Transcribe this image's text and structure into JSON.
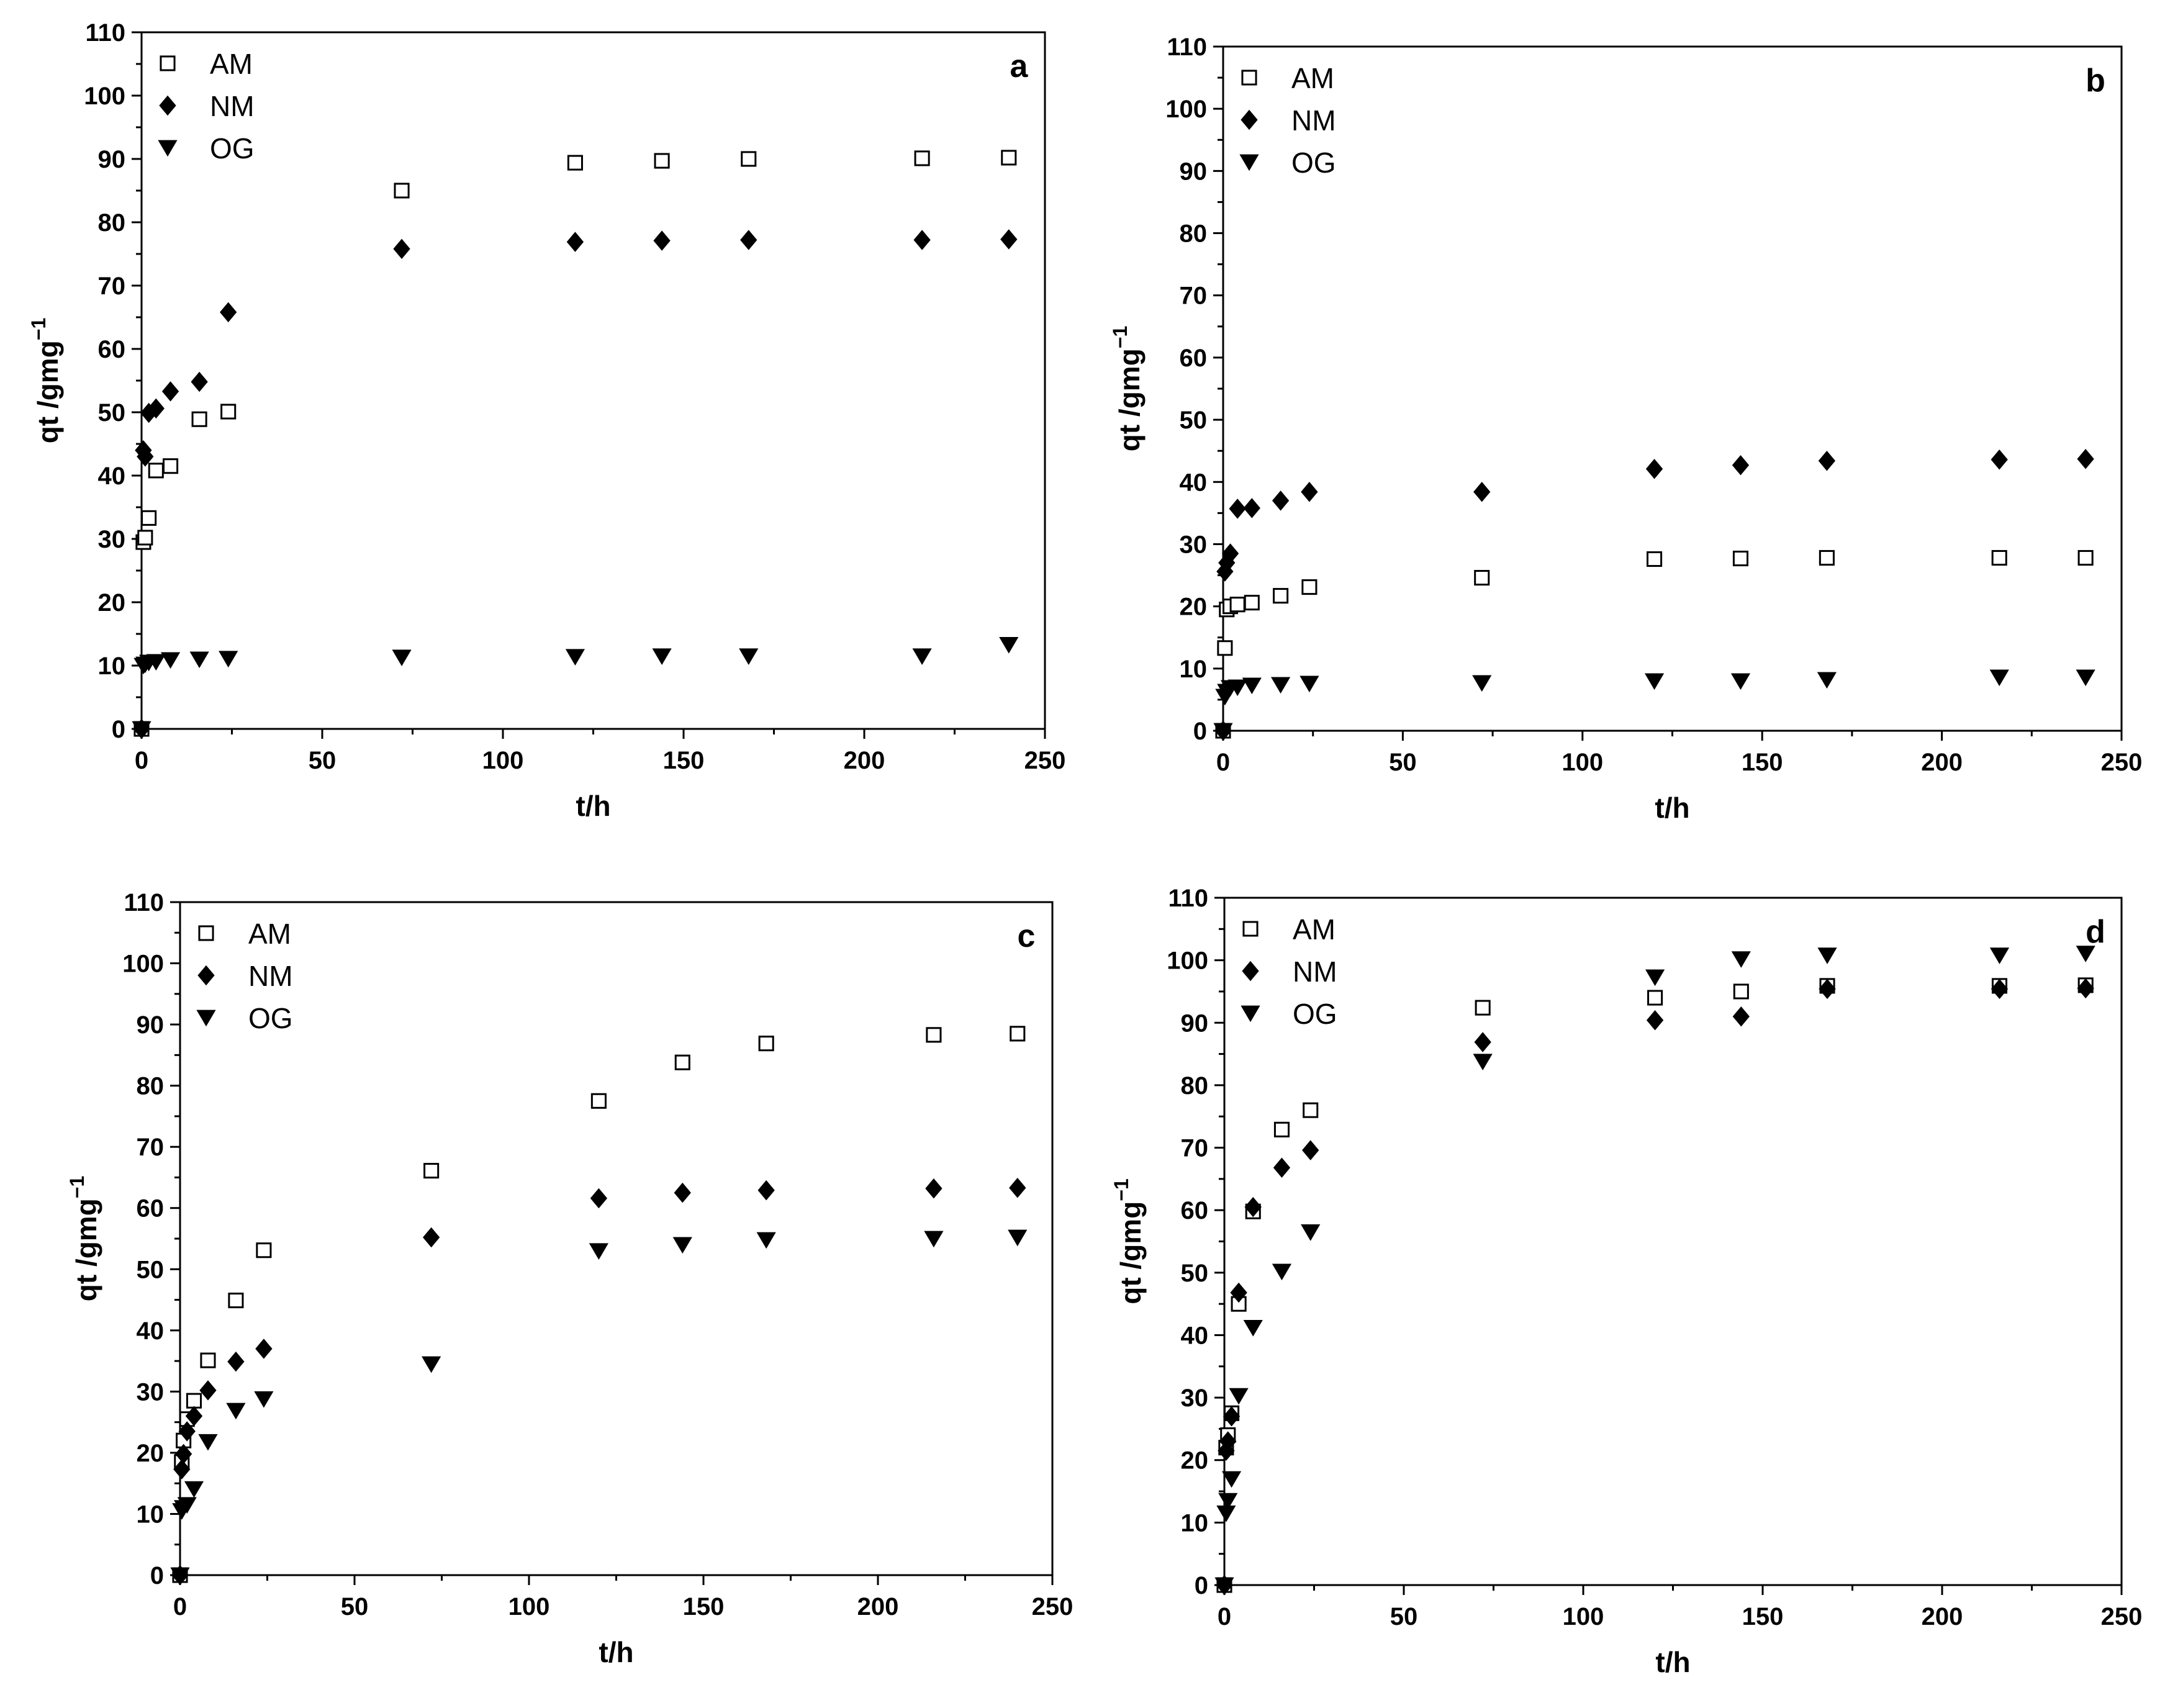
{
  "chart_data": [
    {
      "type": "scatter",
      "panel_label": "a",
      "xlabel": "t/h",
      "ylabel": "qt /gmg",
      "ylabel_superscript": "−1",
      "xlim": [
        0,
        250
      ],
      "ylim": [
        0,
        110
      ],
      "x_ticks": [
        "0",
        "50",
        "100",
        "150",
        "200",
        "250"
      ],
      "y_ticks": [
        "0",
        "10",
        "20",
        "30",
        "40",
        "50",
        "60",
        "70",
        "80",
        "90",
        "100",
        "110"
      ],
      "legend_position": "top-left",
      "series": [
        {
          "name": "AM",
          "marker": "open-square",
          "x": [
            0,
            0.5,
            1,
            2,
            4,
            8,
            16,
            24,
            72,
            120,
            144,
            168,
            216,
            240
          ],
          "y": [
            0,
            29.5,
            30.2,
            33.3,
            40.8,
            41.5,
            48.9,
            50.1,
            85.0,
            89.4,
            89.7,
            90.0,
            90.1,
            90.2
          ]
        },
        {
          "name": "NM",
          "marker": "filled-diamond",
          "x": [
            0,
            0.5,
            1,
            2,
            4,
            8,
            16,
            24,
            72,
            120,
            144,
            168,
            216,
            240
          ],
          "y": [
            0,
            44.0,
            43.0,
            49.9,
            50.6,
            53.3,
            54.8,
            65.8,
            75.8,
            76.9,
            77.1,
            77.2,
            77.2,
            77.3
          ]
        },
        {
          "name": "OG",
          "marker": "filled-triangle-down",
          "x": [
            0,
            0.5,
            1,
            2,
            4,
            8,
            16,
            24,
            72,
            120,
            144,
            168,
            216,
            240
          ],
          "y": [
            0,
            10.0,
            10.2,
            10.5,
            10.6,
            10.9,
            11.0,
            11.1,
            11.3,
            11.4,
            11.5,
            11.5,
            11.5,
            13.3
          ]
        }
      ]
    },
    {
      "type": "scatter",
      "panel_label": "b",
      "xlabel": "t/h",
      "ylabel": "qt /gmg",
      "ylabel_superscript": "−1",
      "xlim": [
        0,
        250
      ],
      "ylim": [
        0,
        110
      ],
      "x_ticks": [
        "0",
        "50",
        "100",
        "150",
        "200",
        "250"
      ],
      "y_ticks": [
        "0",
        "10",
        "20",
        "30",
        "40",
        "50",
        "60",
        "70",
        "80",
        "90",
        "100",
        "110"
      ],
      "legend_position": "top-left",
      "series": [
        {
          "name": "AM",
          "marker": "open-square",
          "x": [
            0,
            0.5,
            1,
            2,
            4,
            8,
            16,
            24,
            72,
            120,
            144,
            168,
            216,
            240
          ],
          "y": [
            0,
            13.3,
            19.5,
            20.0,
            20.3,
            20.6,
            21.7,
            23.1,
            24.6,
            27.6,
            27.7,
            27.8,
            27.8,
            27.8
          ]
        },
        {
          "name": "NM",
          "marker": "filled-diamond",
          "x": [
            0,
            0.5,
            1,
            2,
            4,
            8,
            16,
            24,
            72,
            120,
            144,
            168,
            216,
            240
          ],
          "y": [
            0,
            25.6,
            27.0,
            28.5,
            35.7,
            35.8,
            37.0,
            38.4,
            38.4,
            42.1,
            42.7,
            43.4,
            43.6,
            43.7
          ]
        },
        {
          "name": "OG",
          "marker": "filled-triangle-down",
          "x": [
            0,
            0.5,
            1,
            2,
            4,
            8,
            16,
            24,
            72,
            120,
            144,
            168,
            216,
            240
          ],
          "y": [
            0,
            5.5,
            6.3,
            6.9,
            7.0,
            7.3,
            7.4,
            7.6,
            7.7,
            8.0,
            8.0,
            8.2,
            8.6,
            8.6
          ]
        }
      ]
    },
    {
      "type": "scatter",
      "panel_label": "c",
      "xlabel": "t/h",
      "ylabel": "qt /gmg",
      "ylabel_superscript": "−1",
      "xlim": [
        0,
        250
      ],
      "ylim": [
        0,
        110
      ],
      "x_ticks": [
        "0",
        "50",
        "100",
        "150",
        "200",
        "250"
      ],
      "y_ticks": [
        "0",
        "10",
        "20",
        "30",
        "40",
        "50",
        "60",
        "70",
        "80",
        "90",
        "100",
        "110"
      ],
      "legend_position": "top-left",
      "series": [
        {
          "name": "AM",
          "marker": "open-square",
          "x": [
            0,
            0.5,
            1,
            2,
            4,
            8,
            16,
            24,
            72,
            120,
            144,
            168,
            216,
            240
          ],
          "y": [
            0,
            18.5,
            22.0,
            25.5,
            28.5,
            35.1,
            44.9,
            53.1,
            66.1,
            77.5,
            83.8,
            86.9,
            88.3,
            88.5
          ]
        },
        {
          "name": "NM",
          "marker": "filled-diamond",
          "x": [
            0,
            0.5,
            1,
            2,
            4,
            8,
            16,
            24,
            72,
            120,
            144,
            168,
            216,
            240
          ],
          "y": [
            0,
            17.3,
            19.8,
            23.5,
            26.0,
            30.2,
            34.9,
            37.0,
            55.2,
            61.6,
            62.5,
            62.9,
            63.2,
            63.3
          ]
        },
        {
          "name": "OG",
          "marker": "filled-triangle-down",
          "x": [
            0,
            0.5,
            1,
            2,
            4,
            8,
            16,
            24,
            72,
            120,
            144,
            168,
            216,
            240
          ],
          "y": [
            0,
            10.5,
            11.0,
            11.5,
            14.1,
            21.8,
            26.9,
            28.8,
            34.5,
            53.0,
            54.0,
            54.8,
            55.0,
            55.2
          ]
        }
      ]
    },
    {
      "type": "scatter",
      "panel_label": "d",
      "xlabel": "t/h",
      "ylabel": "qt /gmg",
      "ylabel_superscript": "−1",
      "xlim": [
        0,
        250
      ],
      "ylim": [
        0,
        110
      ],
      "x_ticks": [
        "0",
        "50",
        "100",
        "150",
        "200",
        "250"
      ],
      "y_ticks": [
        "0",
        "10",
        "20",
        "30",
        "40",
        "50",
        "60",
        "70",
        "80",
        "90",
        "100",
        "110"
      ],
      "legend_position": "top-left",
      "series": [
        {
          "name": "AM",
          "marker": "open-square",
          "x": [
            0,
            0.5,
            1,
            2,
            4,
            8,
            16,
            24,
            72,
            120,
            144,
            168,
            216,
            240
          ],
          "y": [
            0,
            22.0,
            24.0,
            27.5,
            45.0,
            59.8,
            72.9,
            76.0,
            92.4,
            94.0,
            95.0,
            95.9,
            95.9,
            96.0
          ]
        },
        {
          "name": "NM",
          "marker": "filled-diamond",
          "x": [
            0,
            0.5,
            1,
            2,
            4,
            8,
            16,
            24,
            72,
            120,
            144,
            168,
            216,
            240
          ],
          "y": [
            0,
            21.5,
            23.0,
            27.0,
            46.8,
            60.5,
            66.8,
            69.6,
            86.9,
            90.4,
            91.0,
            95.4,
            95.4,
            95.5
          ]
        },
        {
          "name": "OG",
          "marker": "filled-triangle-down",
          "x": [
            0,
            0.5,
            1,
            2,
            4,
            8,
            16,
            24,
            72,
            120,
            144,
            168,
            216,
            240
          ],
          "y": [
            0,
            11.5,
            13.5,
            17.0,
            30.3,
            41.2,
            50.2,
            56.5,
            83.8,
            97.3,
            100.2,
            100.8,
            100.8,
            101.1
          ]
        }
      ]
    }
  ]
}
